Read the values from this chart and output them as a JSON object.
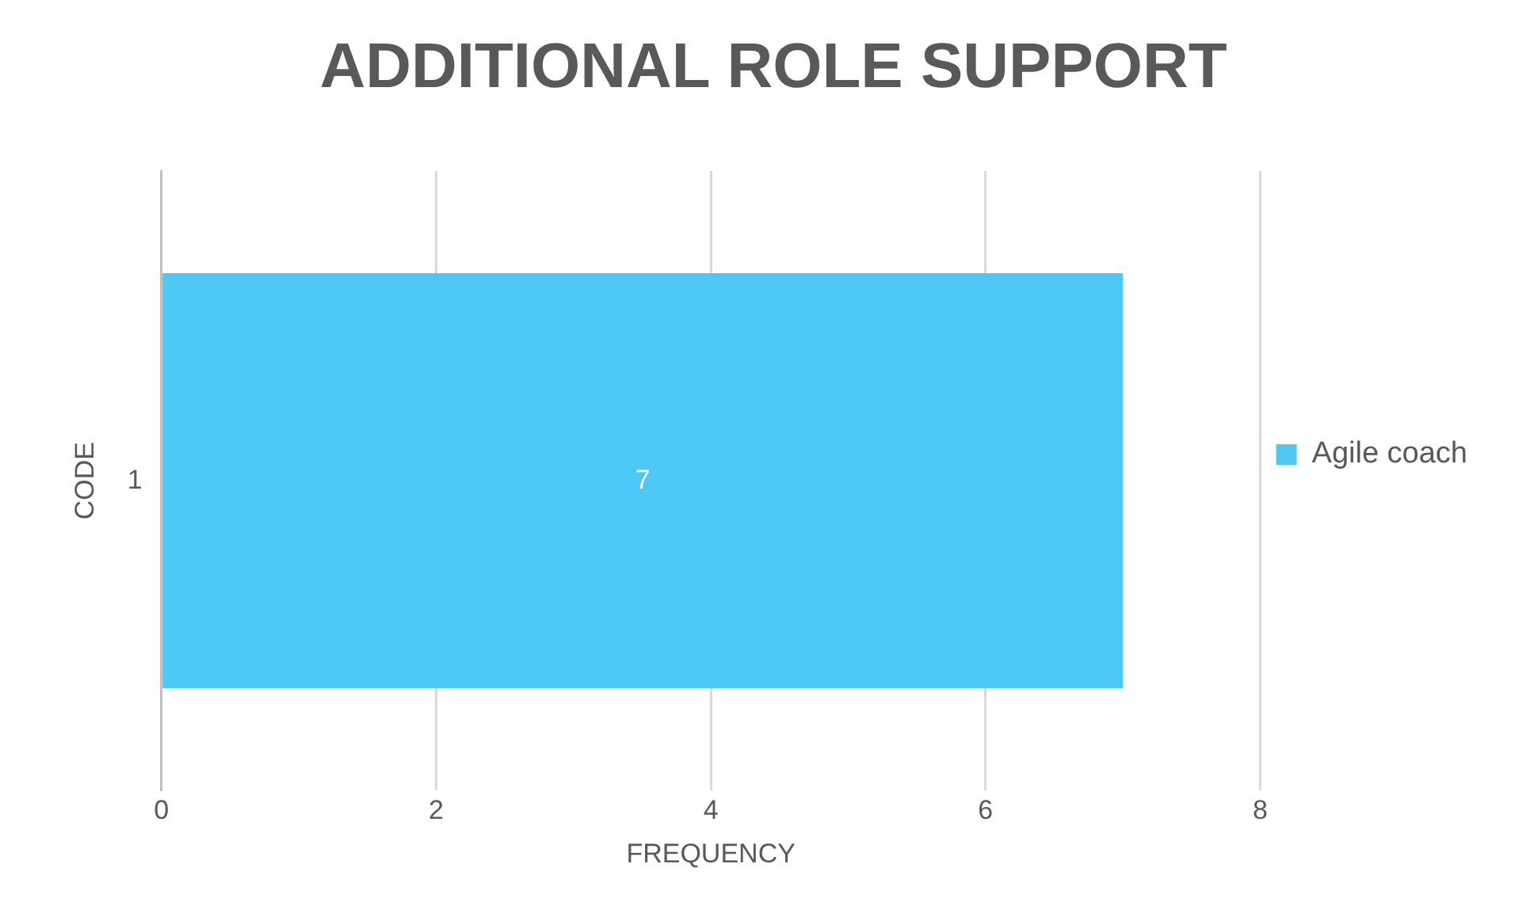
{
  "chart_data": {
    "type": "bar",
    "orientation": "horizontal",
    "title": "ADDITIONAL ROLE SUPPORT",
    "xlabel": "FREQUENCY",
    "ylabel": "CODE",
    "categories": [
      "1"
    ],
    "series": [
      {
        "name": "Agile coach",
        "color": "#4dc8f4",
        "values": [
          7
        ]
      }
    ],
    "xlim": [
      0,
      8
    ],
    "xticks": [
      0,
      2,
      4,
      6,
      8
    ],
    "grid": "x",
    "legend": "right",
    "data_labels": true
  }
}
